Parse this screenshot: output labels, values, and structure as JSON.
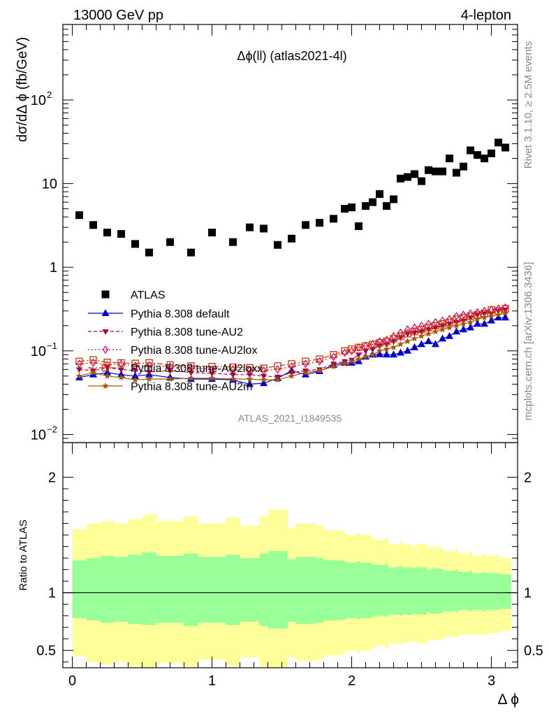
{
  "header": {
    "left": "13000 GeV pp",
    "right": "4-lepton",
    "title": "Δϕ(ll) (atlas2021-4l)",
    "watermark": "ATLAS_2021_I1849535",
    "side_top": "Rivet 3.1.10, ≥ 2.5M events",
    "side_bottom": "mcplots.cern.ch [arXiv:1306.3436]"
  },
  "chart_data": [
    {
      "type": "scatter",
      "ylabel": "dσ/dΔ ϕ (fb/GeV)",
      "yscale": "log",
      "ylim": [
        0.008,
        800
      ],
      "xlim": [
        -0.05,
        3.2
      ],
      "yticks": [
        {
          "v": 0.01,
          "label": "10",
          "sup": "−2"
        },
        {
          "v": 0.1,
          "label": "10",
          "sup": "−1"
        },
        {
          "v": 1,
          "label": "1",
          "sup": ""
        },
        {
          "v": 10,
          "label": "10",
          "sup": ""
        },
        {
          "v": 100,
          "label": "10",
          "sup": "2"
        }
      ],
      "x": [
        0.05,
        0.15,
        0.25,
        0.35,
        0.45,
        0.55,
        0.7,
        0.85,
        1.0,
        1.15,
        1.27,
        1.37,
        1.47,
        1.57,
        1.67,
        1.77,
        1.87,
        1.95,
        2.0,
        2.05,
        2.1,
        2.15,
        2.2,
        2.25,
        2.3,
        2.35,
        2.4,
        2.45,
        2.5,
        2.55,
        2.6,
        2.65,
        2.7,
        2.75,
        2.8,
        2.85,
        2.9,
        2.95,
        3.0,
        3.05,
        3.1
      ],
      "series": [
        {
          "name": "ATLAS",
          "color": "#000000",
          "marker": "square",
          "values": [
            4.2,
            3.2,
            2.6,
            2.5,
            1.9,
            1.5,
            2.0,
            1.5,
            2.6,
            2.0,
            3.0,
            2.9,
            1.85,
            2.2,
            3.2,
            3.4,
            3.8,
            5.0,
            5.2,
            3.1,
            5.4,
            6.0,
            7.5,
            5.4,
            6.5,
            11.5,
            12.0,
            13.0,
            10.7,
            14.5,
            14.0,
            14.0,
            20.0,
            13.5,
            16.0,
            25.0,
            22.0,
            20.0,
            23.0,
            31.0,
            27.0
          ]
        },
        {
          "name": "Pythia 8.308 default",
          "color": "#0000cc",
          "marker": "triangle-up",
          "values": [
            0.048,
            0.052,
            0.055,
            0.052,
            0.05,
            0.052,
            0.048,
            0.046,
            0.046,
            0.045,
            0.04,
            0.041,
            0.047,
            0.058,
            0.052,
            0.057,
            0.068,
            0.072,
            0.072,
            0.075,
            0.085,
            0.09,
            0.091,
            0.09,
            0.09,
            0.095,
            0.1,
            0.11,
            0.12,
            0.13,
            0.12,
            0.14,
            0.15,
            0.17,
            0.18,
            0.19,
            0.21,
            0.21,
            0.23,
            0.25,
            0.25
          ]
        },
        {
          "name": "Pythia 8.308 tune-AU2",
          "color": "#aa0044",
          "marker": "triangle-down",
          "values": [
            0.06,
            0.058,
            0.063,
            0.06,
            0.058,
            0.056,
            0.058,
            0.055,
            0.054,
            0.052,
            0.052,
            0.05,
            0.049,
            0.055,
            0.058,
            0.06,
            0.07,
            0.075,
            0.078,
            0.09,
            0.1,
            0.105,
            0.115,
            0.12,
            0.13,
            0.145,
            0.16,
            0.165,
            0.17,
            0.18,
            0.19,
            0.2,
            0.21,
            0.22,
            0.23,
            0.25,
            0.27,
            0.28,
            0.28,
            0.3,
            0.31
          ]
        },
        {
          "name": "Pythia 8.308 tune-AU2lox",
          "color": "#cc0066",
          "marker": "diamond-open",
          "values": [
            0.07,
            0.072,
            0.068,
            0.07,
            0.066,
            0.067,
            0.065,
            0.063,
            0.06,
            0.06,
            0.059,
            0.058,
            0.06,
            0.065,
            0.07,
            0.075,
            0.085,
            0.095,
            0.1,
            0.11,
            0.115,
            0.12,
            0.13,
            0.135,
            0.15,
            0.165,
            0.18,
            0.19,
            0.2,
            0.21,
            0.22,
            0.23,
            0.24,
            0.26,
            0.27,
            0.28,
            0.29,
            0.3,
            0.31,
            0.32,
            0.33
          ]
        },
        {
          "name": "Pythia 8.308 tune-AU2loxx",
          "color": "#cc3300",
          "marker": "square-open",
          "values": [
            0.075,
            0.078,
            0.073,
            0.072,
            0.071,
            0.072,
            0.068,
            0.066,
            0.065,
            0.064,
            0.063,
            0.062,
            0.066,
            0.07,
            0.075,
            0.08,
            0.09,
            0.1,
            0.105,
            0.11,
            0.115,
            0.12,
            0.125,
            0.13,
            0.14,
            0.15,
            0.16,
            0.17,
            0.18,
            0.19,
            0.2,
            0.21,
            0.22,
            0.24,
            0.25,
            0.26,
            0.27,
            0.28,
            0.31,
            0.3,
            0.32
          ]
        },
        {
          "name": "Pythia 8.308 tune-AU2m",
          "color": "#aa5500",
          "marker": "star",
          "values": [
            0.05,
            0.055,
            0.05,
            0.048,
            0.045,
            0.046,
            0.046,
            0.047,
            0.047,
            0.046,
            0.046,
            0.045,
            0.045,
            0.05,
            0.055,
            0.058,
            0.065,
            0.07,
            0.075,
            0.08,
            0.085,
            0.09,
            0.1,
            0.105,
            0.11,
            0.12,
            0.13,
            0.14,
            0.15,
            0.16,
            0.17,
            0.18,
            0.19,
            0.2,
            0.21,
            0.22,
            0.24,
            0.25,
            0.26,
            0.27,
            0.28
          ]
        }
      ]
    },
    {
      "type": "area",
      "ylabel": "Ratio to ATLAS",
      "xlabel": "Δ ϕ",
      "ylim": [
        0.35,
        2.3
      ],
      "xlim": [
        -0.05,
        3.2
      ],
      "yticks": [
        0.5,
        1,
        2
      ],
      "xticks": [
        0,
        1,
        2,
        3
      ],
      "bin_edges": [
        0.0,
        0.1,
        0.2,
        0.3,
        0.4,
        0.5,
        0.6,
        0.8,
        0.9,
        1.1,
        1.2,
        1.34,
        1.4,
        1.54,
        1.6,
        1.74,
        1.8,
        1.94,
        1.96,
        2.04,
        2.06,
        2.14,
        2.16,
        2.24,
        2.26,
        2.34,
        2.36,
        2.44,
        2.46,
        2.54,
        2.56,
        2.64,
        2.66,
        2.74,
        2.76,
        2.84,
        2.86,
        2.94,
        2.96,
        3.04,
        3.06,
        3.14
      ],
      "green_band": {
        "color": "#99ff99",
        "upper": [
          1.28,
          1.3,
          1.32,
          1.31,
          1.33,
          1.35,
          1.32,
          1.34,
          1.31,
          1.33,
          1.3,
          1.34,
          1.36,
          1.29,
          1.31,
          1.3,
          1.28,
          1.27,
          1.26,
          1.27,
          1.26,
          1.25,
          1.24,
          1.25,
          1.22,
          1.23,
          1.22,
          1.21,
          1.22,
          1.2,
          1.21,
          1.2,
          1.19,
          1.2,
          1.18,
          1.19,
          1.17,
          1.18,
          1.17,
          1.17,
          1.16
        ],
        "lower": [
          0.78,
          0.76,
          0.74,
          0.75,
          0.73,
          0.72,
          0.74,
          0.71,
          0.74,
          0.72,
          0.75,
          0.71,
          0.69,
          0.75,
          0.73,
          0.74,
          0.76,
          0.77,
          0.78,
          0.77,
          0.78,
          0.79,
          0.8,
          0.79,
          0.81,
          0.8,
          0.81,
          0.82,
          0.81,
          0.83,
          0.82,
          0.83,
          0.84,
          0.83,
          0.85,
          0.84,
          0.85,
          0.84,
          0.85,
          0.85,
          0.86
        ]
      },
      "yellow_band": {
        "color": "#ffff99",
        "upper": [
          1.55,
          1.6,
          1.62,
          1.6,
          1.64,
          1.68,
          1.62,
          1.66,
          1.6,
          1.65,
          1.58,
          1.66,
          1.72,
          1.56,
          1.6,
          1.58,
          1.54,
          1.52,
          1.5,
          1.52,
          1.5,
          1.48,
          1.46,
          1.48,
          1.42,
          1.44,
          1.42,
          1.4,
          1.42,
          1.38,
          1.4,
          1.38,
          1.36,
          1.38,
          1.34,
          1.36,
          1.32,
          1.34,
          1.32,
          1.33,
          1.3
        ],
        "lower": [
          0.45,
          0.4,
          0.38,
          0.4,
          0.36,
          0.35,
          0.39,
          0.36,
          0.42,
          0.37,
          0.44,
          0.36,
          0.35,
          0.44,
          0.41,
          0.42,
          0.46,
          0.48,
          0.5,
          0.48,
          0.5,
          0.52,
          0.54,
          0.52,
          0.56,
          0.55,
          0.57,
          0.58,
          0.56,
          0.6,
          0.59,
          0.6,
          0.62,
          0.61,
          0.64,
          0.63,
          0.64,
          0.63,
          0.65,
          0.65,
          0.67
        ]
      },
      "reference_line": 1
    }
  ]
}
